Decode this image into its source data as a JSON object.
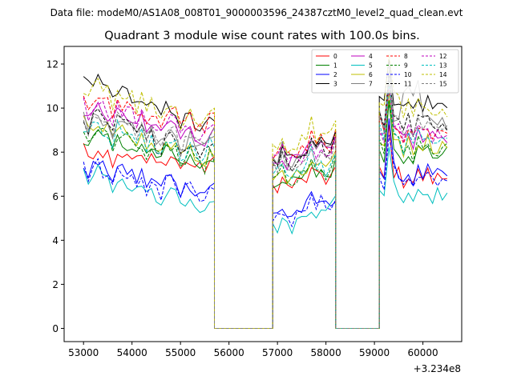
{
  "figure": {
    "suptitle": "Data file: modeM0/AS1A08_008T01_9000003596_24387cztM0_level2_quad_clean.evt",
    "offset_label": "+3.234e8"
  },
  "chart_data": {
    "type": "line",
    "title": "Quadrant 3 module wise count rates with 100.0s bins.",
    "xlabel": "",
    "ylabel": "",
    "x_offset": 323400000,
    "xlim": [
      52600,
      60800
    ],
    "ylim": [
      -0.6,
      12.8
    ],
    "x_ticks": [
      53000,
      54000,
      55000,
      56000,
      57000,
      58000,
      59000,
      60000
    ],
    "x_tick_labels": [
      "53000",
      "54000",
      "55000",
      "56000",
      "57000",
      "58000",
      "59000",
      "60000"
    ],
    "y_ticks": [
      0,
      2,
      4,
      6,
      8,
      10,
      12
    ],
    "y_tick_labels": [
      "0",
      "2",
      "4",
      "6",
      "8",
      "10",
      "12"
    ],
    "grid": false,
    "legend_position": "top-right",
    "legend_columns": 4,
    "segments": [
      {
        "start": 53000,
        "end": 55700,
        "n": 28
      },
      {
        "start": 55700,
        "end": 56900,
        "gap_value": 0
      },
      {
        "start": 56900,
        "end": 58200,
        "n": 14
      },
      {
        "start": 58200,
        "end": 59100,
        "gap_value": 0
      },
      {
        "start": 59100,
        "end": 60500,
        "n": 15
      }
    ],
    "series": [
      {
        "name": "0",
        "color": "#ff0000",
        "dash": "solid",
        "levels": [
          8.0,
          7.3,
          6.5,
          7.0,
          6.9
        ]
      },
      {
        "name": "1",
        "color": "#008000",
        "dash": "solid",
        "levels": [
          8.6,
          7.4,
          6.6,
          7.2,
          8.0
        ]
      },
      {
        "name": "2",
        "color": "#0000ff",
        "dash": "solid",
        "levels": [
          7.3,
          6.2,
          5.2,
          5.8,
          7.0
        ]
      },
      {
        "name": "3",
        "color": "#000000",
        "dash": "solid",
        "levels": [
          11.2,
          9.0,
          7.6,
          8.8,
          10.2
        ]
      },
      {
        "name": "4",
        "color": "#bf00bf",
        "dash": "solid",
        "levels": [
          9.8,
          8.6,
          7.6,
          8.2,
          8.8
        ]
      },
      {
        "name": "5",
        "color": "#00bfbf",
        "dash": "solid",
        "levels": [
          6.8,
          5.6,
          4.6,
          5.6,
          6.2
        ]
      },
      {
        "name": "6",
        "color": "#bfbf00",
        "dash": "solid",
        "levels": [
          9.2,
          7.6,
          6.8,
          7.4,
          8.4
        ]
      },
      {
        "name": "7",
        "color": "#808080",
        "dash": "solid",
        "levels": [
          9.4,
          8.2,
          7.8,
          8.4,
          9.4
        ]
      },
      {
        "name": "8",
        "color": "#ff0000",
        "dash": "dashed",
        "levels": [
          10.2,
          9.2,
          8.0,
          8.4,
          9.0
        ]
      },
      {
        "name": "9",
        "color": "#008000",
        "dash": "dashed",
        "levels": [
          8.8,
          7.4,
          6.8,
          7.2,
          8.2
        ]
      },
      {
        "name": "10",
        "color": "#0000ff",
        "dash": "dashed",
        "levels": [
          7.1,
          6.0,
          5.0,
          5.6,
          6.8
        ]
      },
      {
        "name": "11",
        "color": "#000000",
        "dash": "dashed",
        "levels": [
          9.4,
          8.0,
          7.6,
          8.4,
          9.4
        ]
      },
      {
        "name": "12",
        "color": "#bf00bf",
        "dash": "dashed",
        "levels": [
          10.0,
          8.8,
          7.8,
          8.2,
          9.0
        ]
      },
      {
        "name": "13",
        "color": "#00bfbf",
        "dash": "dashed",
        "levels": [
          9.0,
          7.8,
          7.2,
          7.6,
          8.6
        ]
      },
      {
        "name": "14",
        "color": "#bfbf00",
        "dash": "dashed",
        "levels": [
          10.8,
          9.4,
          8.4,
          9.0,
          10.0
        ]
      },
      {
        "name": "15",
        "color": "#808080",
        "dash": "dashed",
        "levels": [
          9.2,
          8.4,
          7.4,
          8.0,
          9.2
        ]
      }
    ]
  }
}
